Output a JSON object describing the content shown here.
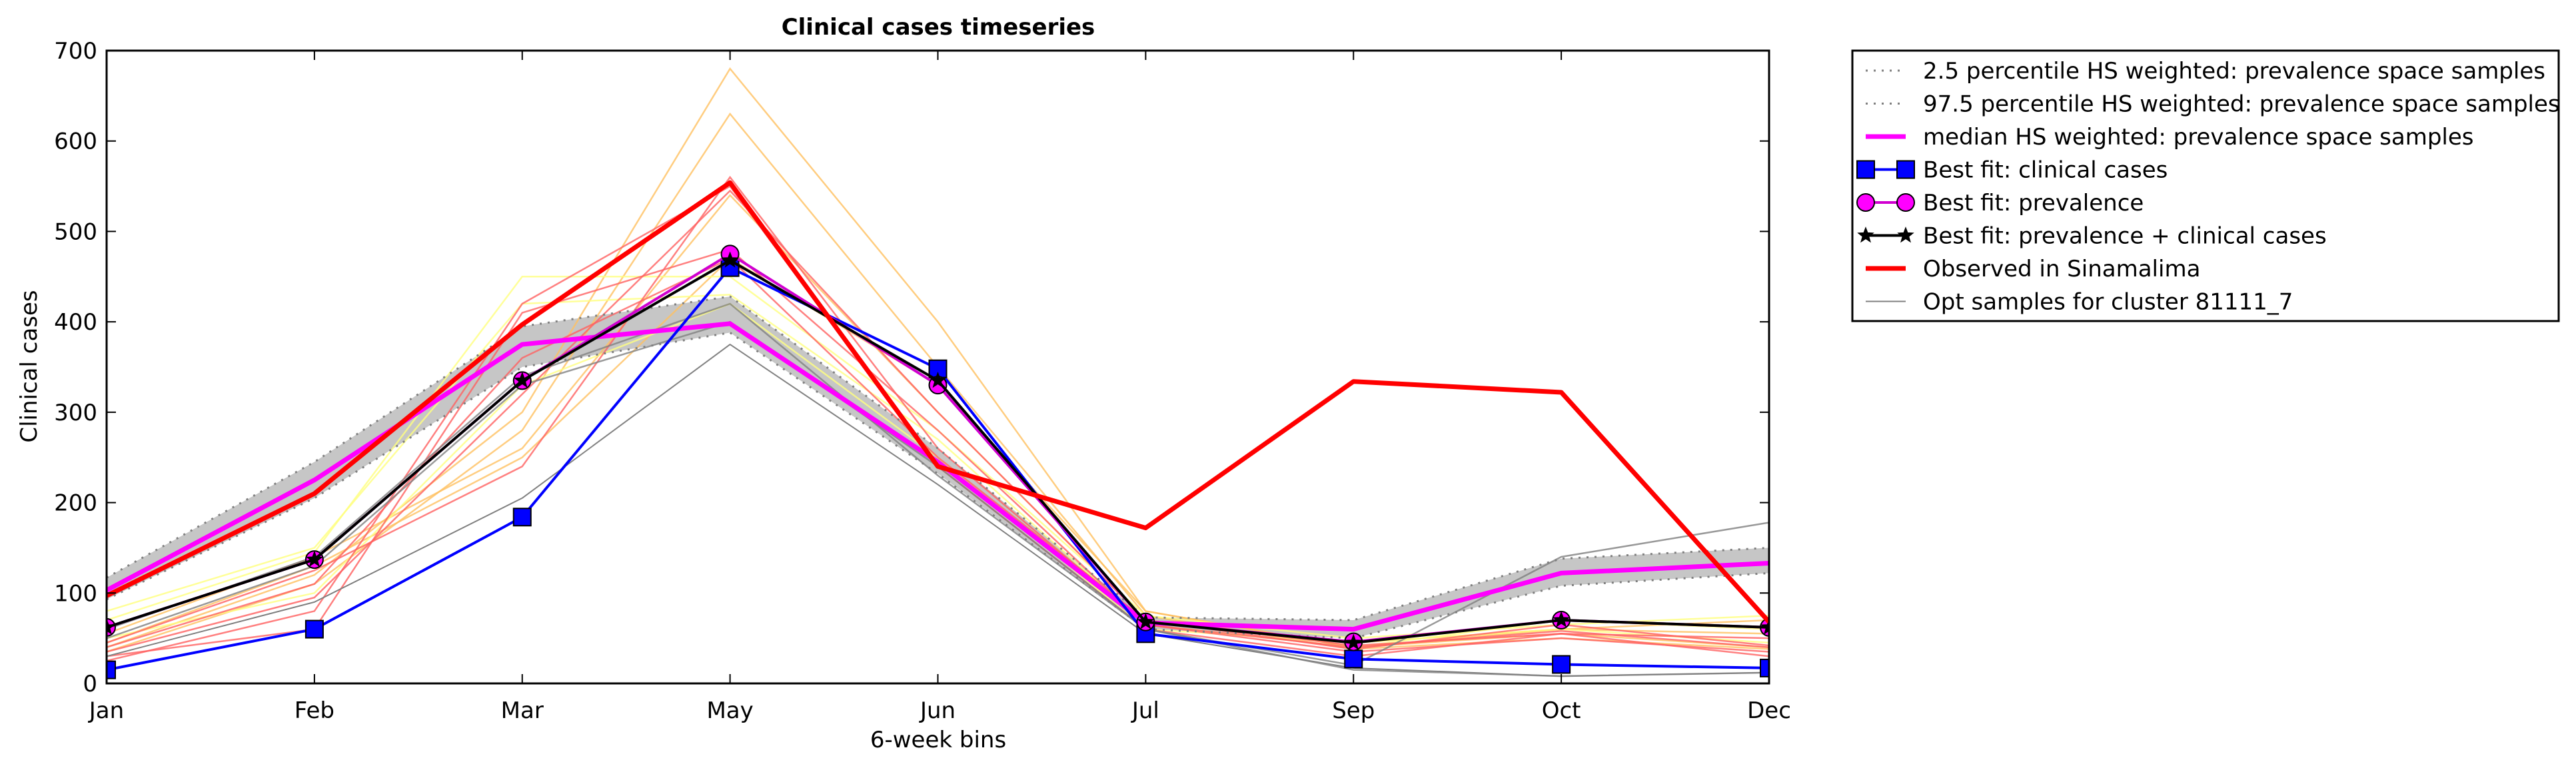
{
  "chart_data": {
    "type": "line",
    "title": "Clinical cases timeseries",
    "xlabel": "6-week bins",
    "ylabel": "Clinical cases",
    "categories": [
      "Jan",
      "Feb",
      "Mar",
      "May",
      "Jun",
      "Jul",
      "Sep",
      "Oct",
      "Dec"
    ],
    "ylim": [
      0,
      700
    ],
    "yticks": [
      0,
      100,
      200,
      300,
      400,
      500,
      600,
      700
    ],
    "grid": false,
    "legend_position": "outside-right-top",
    "band": {
      "lower": [
        93,
        205,
        350,
        388,
        232,
        60,
        50,
        108,
        122
      ],
      "upper": [
        117,
        245,
        395,
        428,
        260,
        73,
        70,
        138,
        150
      ],
      "color": "#c0c0c0"
    },
    "series": [
      {
        "name": "2.5 percentile HS weighted: prevalence space samples",
        "values": [
          93,
          205,
          350,
          388,
          232,
          60,
          50,
          108,
          122
        ],
        "color": "#808080",
        "style": "dotted"
      },
      {
        "name": "97.5 percentile HS weighted: prevalence space samples",
        "values": [
          117,
          245,
          395,
          428,
          260,
          73,
          70,
          138,
          150
        ],
        "color": "#808080",
        "style": "dotted"
      },
      {
        "name": "median HS weighted: prevalence space samples",
        "values": [
          103,
          225,
          375,
          398,
          245,
          67,
          60,
          122,
          133
        ],
        "color": "#ff00ff",
        "style": "solid",
        "width": 7
      },
      {
        "name": "Best fit: clinical cases",
        "values": [
          15,
          60,
          184,
          460,
          348,
          55,
          27,
          21,
          17
        ],
        "color": "#0000ff",
        "style": "solid",
        "marker": "square",
        "marker_color": "#0000ff"
      },
      {
        "name": "Best fit: prevalence",
        "values": [
          62,
          137,
          335,
          475,
          330,
          68,
          46,
          70,
          62
        ],
        "color": "#d000d0",
        "style": "solid",
        "marker": "circle",
        "marker_color": "#ff00ff"
      },
      {
        "name": "Best fit: prevalence + clinical cases",
        "values": [
          62,
          137,
          335,
          468,
          335,
          68,
          45,
          70,
          62
        ],
        "color": "#000000",
        "style": "solid",
        "marker": "star",
        "marker_color": "#000000"
      },
      {
        "name": "Observed in Sinamalima",
        "values": [
          97,
          210,
          397,
          554,
          240,
          172,
          334,
          322,
          68
        ],
        "color": "#ff0000",
        "style": "solid",
        "width": 7
      },
      {
        "name": "Opt samples for cluster 81111_7",
        "values": [
          30,
          90,
          205,
          375,
          220,
          55,
          17,
          8,
          12
        ],
        "color": "#808080",
        "style": "solid",
        "width": 2
      }
    ],
    "sample_lines": [
      {
        "values": [
          40,
          120,
          300,
          680,
          400,
          80,
          40,
          55,
          40
        ],
        "color": "#ffc060"
      },
      {
        "values": [
          35,
          110,
          280,
          630,
          350,
          75,
          38,
          50,
          38
        ],
        "color": "#ffc060"
      },
      {
        "values": [
          55,
          140,
          260,
          540,
          300,
          70,
          45,
          60,
          70
        ],
        "color": "#ffc060"
      },
      {
        "values": [
          45,
          130,
          250,
          470,
          330,
          80,
          40,
          60,
          55
        ],
        "color": "#ffc060"
      },
      {
        "values": [
          70,
          145,
          450,
          450,
          280,
          75,
          50,
          65,
          75
        ],
        "color": "#ffff80"
      },
      {
        "values": [
          80,
          150,
          420,
          430,
          270,
          65,
          40,
          70,
          60
        ],
        "color": "#ffff80"
      },
      {
        "values": [
          50,
          100,
          330,
          420,
          250,
          60,
          45,
          60,
          45
        ],
        "color": "#ffff80"
      },
      {
        "values": [
          25,
          80,
          420,
          550,
          240,
          60,
          30,
          55,
          30
        ],
        "color": "#ff6060"
      },
      {
        "values": [
          30,
          60,
          410,
          480,
          280,
          65,
          35,
          50,
          35
        ],
        "color": "#ff6060"
      },
      {
        "values": [
          40,
          110,
          360,
          470,
          250,
          70,
          38,
          65,
          42
        ],
        "color": "#ff6060"
      },
      {
        "values": [
          45,
          125,
          240,
          560,
          260,
          65,
          40,
          58,
          40
        ],
        "color": "#ff6060"
      },
      {
        "values": [
          35,
          95,
          320,
          545,
          300,
          70,
          42,
          55,
          50
        ],
        "color": "#ff6060"
      },
      {
        "values": [
          50,
          130,
          330,
          400,
          240,
          60,
          15,
          8,
          12
        ],
        "color": "#808080"
      },
      {
        "values": [
          60,
          140,
          340,
          420,
          230,
          60,
          20,
          140,
          178
        ],
        "color": "#808080"
      }
    ]
  }
}
